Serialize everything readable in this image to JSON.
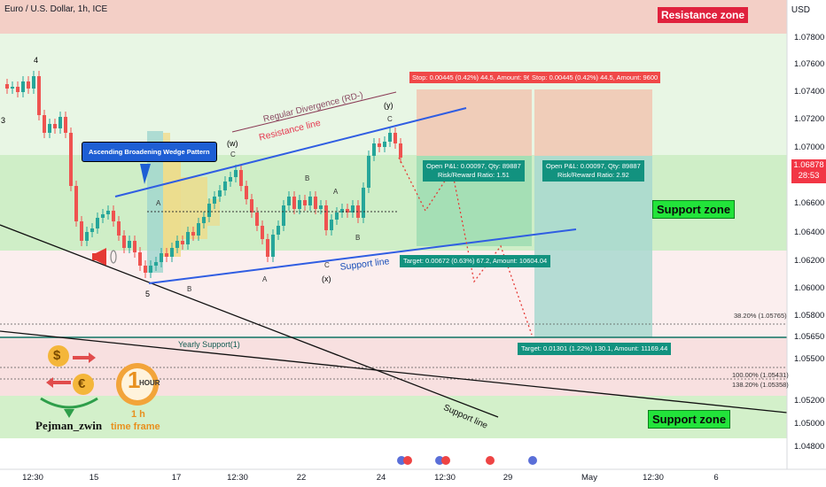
{
  "header": {
    "title": "Euro / U.S. Dollar, 1h, ICE",
    "currency": "USD"
  },
  "price_axis": {
    "labels": [
      "1.07800",
      "1.07600",
      "1.07400",
      "1.07200",
      "1.07000",
      "1.06600",
      "1.06400",
      "1.06200",
      "1.06000",
      "1.05800",
      "1.05650",
      "1.05500",
      "1.05200",
      "1.05000",
      "1.04800"
    ],
    "current_price": "1.06878",
    "countdown": "28:53",
    "current_color": "#f23645"
  },
  "time_axis": {
    "labels": [
      "12:30",
      "15",
      "17",
      "12:30",
      "22",
      "24",
      "12:30",
      "29",
      "May",
      "12:30",
      "6"
    ]
  },
  "zones": {
    "resistance": "Resistance zone",
    "support_mid": "Support zone",
    "support_low": "Support zone",
    "yearly_support": "Yearly Support(1)",
    "green": "#22e33a",
    "red": "#e0213d"
  },
  "lines": {
    "resistance_line": "Resistance line",
    "support_line": "Support line",
    "support_line_lower": "Support line",
    "divergence": "Regular Divergence (RD-)"
  },
  "callout": "Ascending Broadening Wedge Pattern",
  "wave_labels": {
    "w4": "4",
    "w3": "3",
    "w5": "5",
    "wB1": "B",
    "wW": "(w)",
    "wC1": "C",
    "wA1": "A",
    "wA2": "A",
    "wB2": "B",
    "wA3": "A",
    "wB3": "B",
    "wC2": "C",
    "wX": "(x)",
    "wY": "(y)",
    "wC3": "C"
  },
  "fib_levels": {
    "f38": "38.20% (1.05765)",
    "f100": "100.00% (1.05431)",
    "f138": "138.20% (1.05358)"
  },
  "positions": {
    "stop1": "Stop: 0.00445 (0.42%) 44.5, Amount: 96",
    "stop2": "Stop: 0.00445 (0.42%) 44.5, Amount: 9600",
    "pnl1_line1": "Open P&L: 0.00097, Qty: 89887",
    "pnl1_line2": "Risk/Reward Ratio: 1.51",
    "pnl2_line1": "Open P&L: 0.00097, Qty: 89887",
    "pnl2_line2": "Risk/Reward Ratio: 2.92",
    "target1": "Target: 0.00672 (0.63%) 67.2, Amount: 10604.04",
    "target2": "Target: 0.01301 (1.22%) 130.1, Amount: 11169.44"
  },
  "branding": {
    "name": "Pejman_zwin",
    "timeframe_line1": "1 h",
    "timeframe_line2": "time frame",
    "badge_text": "HOUR",
    "badge_number": "1",
    "dollar": "$",
    "euro": "€"
  }
}
